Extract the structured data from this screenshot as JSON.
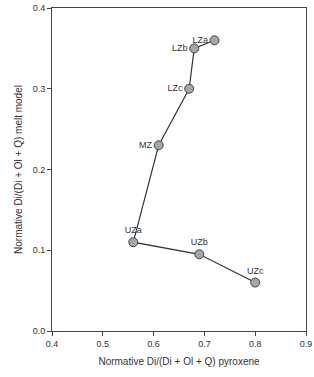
{
  "chart_data": {
    "type": "line",
    "x_label": "Normative Di/(Di + Ol + Q) pyroxene",
    "y_label": "Normative Di/(Di + Ol + Q) melt model",
    "labels": [
      "LZa",
      "LZb",
      "LZc",
      "MZ",
      "UZa",
      "UZb",
      "UZc"
    ],
    "x": [
      0.72,
      0.68,
      0.67,
      0.61,
      0.56,
      0.69,
      0.8
    ],
    "values": [
      0.36,
      0.35,
      0.3,
      0.23,
      0.11,
      0.095,
      0.06
    ],
    "color": "#a6a6a6",
    "marker": "circle",
    "xlim": [
      0.4,
      0.9
    ],
    "xticks": [
      0.4,
      0.5,
      0.6,
      0.7,
      0.8,
      0.9
    ],
    "ylim": [
      0,
      0.4
    ],
    "yticks": [
      {
        "value": 0,
        "label": "0.0"
      },
      0.1,
      0.2,
      0.3,
      0.4
    ],
    "grid": false
  }
}
